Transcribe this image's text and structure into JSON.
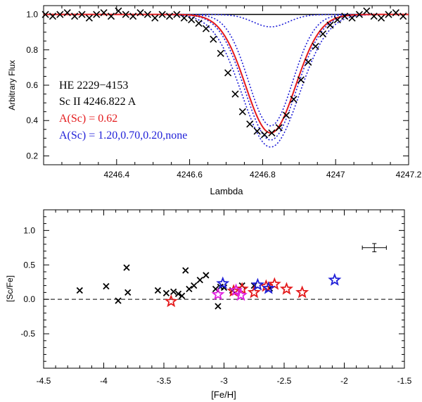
{
  "colors": {
    "black": "#000000",
    "red": "#e41a1c",
    "blue": "#1f1fd8",
    "magenta": "#e020e0",
    "axis": "#000000"
  },
  "chart_data": [
    {
      "type": "line",
      "panel": "spectrum",
      "xlabel": "Lambda",
      "ylabel": "Arbitrary Flux",
      "xlim": [
        4246.2,
        4247.2
      ],
      "ylim": [
        0.15,
        1.05
      ],
      "xticks": [
        4246.4,
        4246.6,
        4246.8,
        4247,
        4247.2
      ],
      "xtick_labels": [
        "4246.4",
        "4246.6",
        "4246.8",
        "4247",
        "4247.2"
      ],
      "yticks": [
        0.2,
        0.4,
        0.6,
        0.8,
        1.0
      ],
      "ytick_labels": [
        "0.2",
        "0.4",
        "0.6",
        "0.8",
        "1.0"
      ],
      "line_center": 4246.822,
      "continuum": 1.0,
      "annotations": {
        "star": "HE 2229−4153",
        "line": "Sc II 4246.822 A",
        "best": "A(Sc) = 0.62",
        "alternates": "A(Sc) = 1.20,0.70,0.20,none"
      },
      "series": [
        {
          "name": "observed",
          "style": "x-markers",
          "color": "black",
          "x": [
            4246.205,
            4246.225,
            4246.245,
            4246.265,
            4246.285,
            4246.305,
            4246.325,
            4246.345,
            4246.365,
            4246.385,
            4246.405,
            4246.425,
            4246.445,
            4246.465,
            4246.485,
            4246.505,
            4246.525,
            4246.545,
            4246.565,
            4246.585,
            4246.605,
            4246.625,
            4246.645,
            4246.665,
            4246.685,
            4246.705,
            4246.725,
            4246.745,
            4246.765,
            4246.785,
            4246.805,
            4246.825,
            4246.845,
            4246.865,
            4246.885,
            4246.905,
            4246.925,
            4246.945,
            4246.965,
            4246.985,
            4247.005,
            4247.025,
            4247.045,
            4247.065,
            4247.085,
            4247.105,
            4247.125,
            4247.145,
            4247.165,
            4247.185
          ],
          "y": [
            1.0,
            0.99,
            1.0,
            1.01,
            0.99,
            1.0,
            0.98,
            1.0,
            1.01,
            0.99,
            1.02,
            1.0,
            0.99,
            1.01,
            1.0,
            0.98,
            1.0,
            0.99,
            1.0,
            0.98,
            0.97,
            0.95,
            0.92,
            0.86,
            0.78,
            0.67,
            0.55,
            0.45,
            0.38,
            0.34,
            0.32,
            0.33,
            0.36,
            0.43,
            0.52,
            0.63,
            0.73,
            0.82,
            0.89,
            0.94,
            0.97,
            0.99,
            0.98,
            1.0,
            1.02,
            0.99,
            0.98,
            1.0,
            1.01,
            0.99
          ]
        },
        {
          "name": "A(Sc) = 0.62",
          "style": "solid",
          "color": "red",
          "depth": 0.67,
          "sigma": 0.068
        },
        {
          "name": "A(Sc) = 1.20",
          "style": "dotted",
          "color": "blue",
          "depth": 0.75,
          "sigma": 0.078
        },
        {
          "name": "A(Sc) = 0.70",
          "style": "dotted",
          "color": "blue",
          "depth": 0.71,
          "sigma": 0.07
        },
        {
          "name": "A(Sc) = 0.20",
          "style": "dotted",
          "color": "blue",
          "depth": 0.63,
          "sigma": 0.06
        },
        {
          "name": "none",
          "style": "dotted",
          "color": "blue",
          "depth": 0.07,
          "sigma": 0.048
        }
      ]
    },
    {
      "type": "scatter",
      "panel": "abundance",
      "xlabel": "[Fe/H]",
      "ylabel": "[Sc/Fe]",
      "xlim": [
        -4.5,
        -1.5
      ],
      "ylim": [
        -1.0,
        1.3
      ],
      "xticks": [
        -4.5,
        -4,
        -3.5,
        -3,
        -2.5,
        -2,
        -1.5
      ],
      "xtick_labels": [
        "-4.5",
        "-4",
        "-3.5",
        "-3",
        "-2.5",
        "-2",
        "-1.5"
      ],
      "yticks": [
        -0.5,
        0.0,
        0.5,
        1.0
      ],
      "ytick_labels": [
        "-0.5",
        "0.0",
        "0.5",
        "1.0"
      ],
      "reference_line": 0.0,
      "error_bar": {
        "x": -1.75,
        "y": 0.75,
        "xerr": 0.1,
        "yerr": 0.06
      },
      "series": [
        {
          "name": "literature",
          "marker": "x",
          "color": "black",
          "points": [
            [
              -4.2,
              0.13
            ],
            [
              -3.98,
              0.19
            ],
            [
              -3.88,
              -0.02
            ],
            [
              -3.81,
              0.46
            ],
            [
              -3.8,
              0.1
            ],
            [
              -3.55,
              0.13
            ],
            [
              -3.48,
              0.09
            ],
            [
              -3.42,
              0.11
            ],
            [
              -3.38,
              0.08
            ],
            [
              -3.35,
              0.05
            ],
            [
              -3.32,
              0.42
            ],
            [
              -3.29,
              0.15
            ],
            [
              -3.25,
              0.2
            ],
            [
              -3.2,
              0.28
            ],
            [
              -3.15,
              0.35
            ],
            [
              -3.07,
              0.15
            ],
            [
              -3.05,
              -0.1
            ],
            [
              -3.03,
              0.18
            ],
            [
              -3.0,
              0.17
            ],
            [
              -2.93,
              0.13
            ],
            [
              -2.85,
              0.2
            ],
            [
              -2.75,
              0.2
            ],
            [
              -2.62,
              0.16
            ]
          ]
        },
        {
          "name": "sample-red",
          "marker": "star",
          "color": "red",
          "points": [
            [
              -3.44,
              -0.03
            ],
            [
              -2.92,
              0.12
            ],
            [
              -2.85,
              0.15
            ],
            [
              -2.75,
              0.1
            ],
            [
              -2.65,
              0.19
            ],
            [
              -2.58,
              0.22
            ],
            [
              -2.48,
              0.15
            ],
            [
              -2.35,
              0.1
            ]
          ]
        },
        {
          "name": "sample-magenta",
          "marker": "star",
          "color": "magenta",
          "points": [
            [
              -3.05,
              0.07
            ],
            [
              -2.9,
              0.13
            ],
            [
              -2.86,
              0.06
            ]
          ]
        },
        {
          "name": "sample-blue",
          "marker": "star",
          "color": "blue",
          "points": [
            [
              -3.01,
              0.23
            ],
            [
              -2.72,
              0.21
            ],
            [
              -2.63,
              0.16
            ],
            [
              -2.08,
              0.28
            ]
          ]
        }
      ]
    }
  ]
}
